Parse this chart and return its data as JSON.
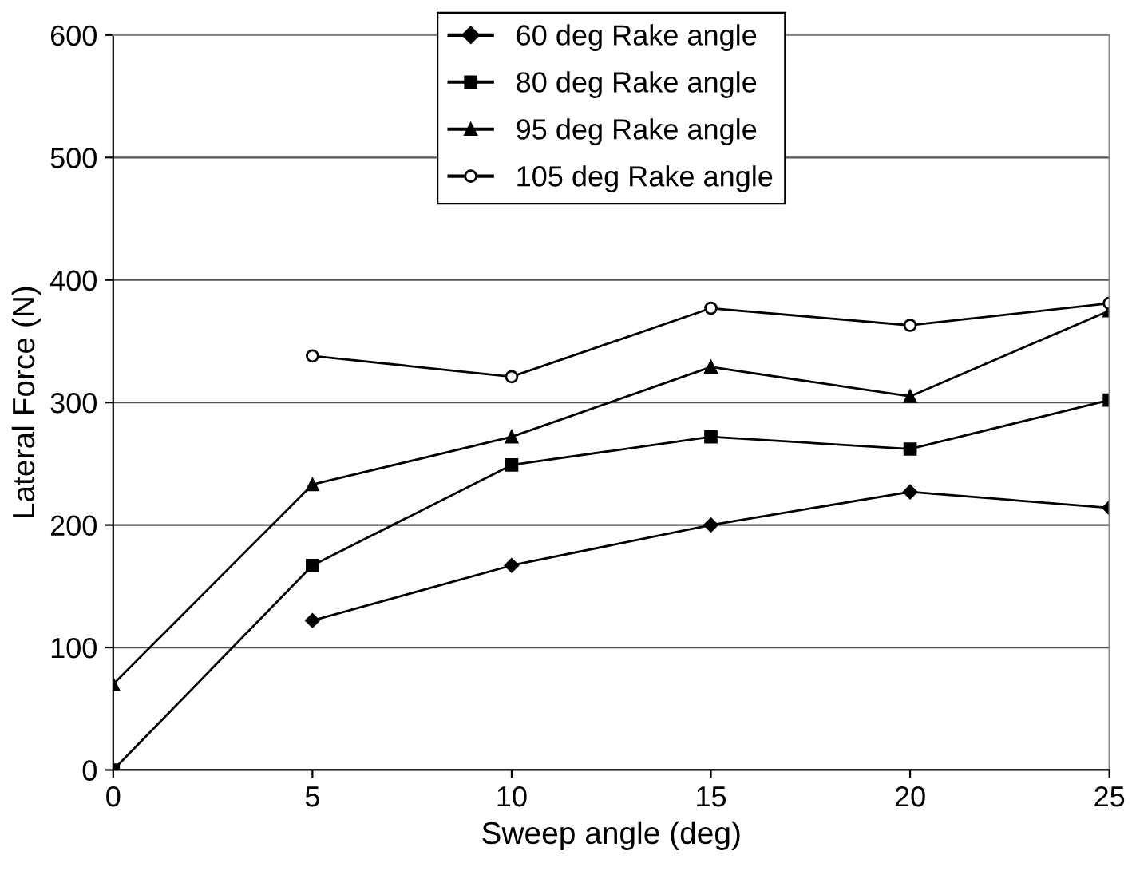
{
  "chart_data": {
    "type": "line",
    "xlabel": "Sweep angle (deg)",
    "ylabel": "Lateral Force (N)",
    "x": [
      0,
      5,
      10,
      15,
      20,
      25
    ],
    "xlim": [
      0,
      25
    ],
    "xticks": [
      0,
      5,
      10,
      15,
      20,
      25
    ],
    "ylim": [
      0,
      600
    ],
    "yticks": [
      0,
      100,
      200,
      300,
      400,
      500,
      600
    ],
    "grid": "y",
    "legend": "top",
    "series": [
      {
        "name": "60 deg Rake angle",
        "color": "#000000",
        "marker": "diamond",
        "values": [
          null,
          122,
          167,
          200,
          227,
          214
        ]
      },
      {
        "name": "80 deg Rake angle",
        "color": "#000000",
        "marker": "square",
        "values": [
          0,
          167,
          249,
          272,
          262,
          302
        ]
      },
      {
        "name": "95 deg Rake angle",
        "color": "#000000",
        "marker": "triangle",
        "values": [
          70,
          233,
          272,
          329,
          305,
          375
        ]
      },
      {
        "name": "105 deg Rake angle",
        "color": "#000000",
        "marker": "circle",
        "values": [
          null,
          338,
          321,
          377,
          363,
          381
        ]
      }
    ]
  }
}
